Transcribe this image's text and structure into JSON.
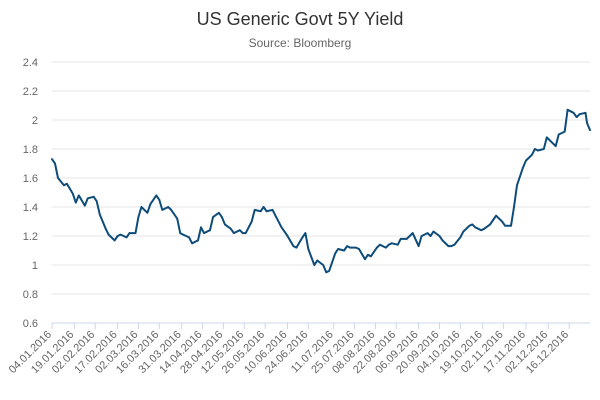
{
  "chart_data": {
    "type": "line",
    "title": "US Generic Govt 5Y Yield",
    "subtitle": "Source: Bloomberg",
    "xlabel": "",
    "ylabel": "",
    "ylim": [
      0.6,
      2.4
    ],
    "yticks": [
      0.6,
      0.8,
      1,
      1.2,
      1.4,
      1.6,
      1.8,
      2,
      2.2,
      2.4
    ],
    "xlim": [
      "04.01.2016",
      "30.12.2016"
    ],
    "xtick_labels": [
      "04.01.2016",
      "19.01.2016",
      "02.02.2016",
      "17.02.2016",
      "02.03.2016",
      "16.03.2016",
      "31.03.2016",
      "14.04.2016",
      "28.04.2016",
      "12.05.2016",
      "26.05.2016",
      "10.06.2016",
      "24.06.2016",
      "11.07.2016",
      "25.07.2016",
      "08.08.2016",
      "22.08.2016",
      "06.09.2016",
      "20.09.2016",
      "04.10.2016",
      "19.10.2016",
      "02.11.2016",
      "17.11.2016",
      "02.12.2016",
      "16.12.2016"
    ],
    "grid": true,
    "legend": "none",
    "color": "#0e4c7a",
    "series": [
      {
        "name": "",
        "points": [
          [
            "04.01.2016",
            1.73
          ],
          [
            "06.01.2016",
            1.7
          ],
          [
            "08.01.2016",
            1.6
          ],
          [
            "12.01.2016",
            1.55
          ],
          [
            "14.01.2016",
            1.56
          ],
          [
            "18.01.2016",
            1.49
          ],
          [
            "20.01.2016",
            1.43
          ],
          [
            "22.01.2016",
            1.48
          ],
          [
            "26.01.2016",
            1.41
          ],
          [
            "28.01.2016",
            1.46
          ],
          [
            "01.02.2016",
            1.47
          ],
          [
            "03.02.2016",
            1.44
          ],
          [
            "05.02.2016",
            1.35
          ],
          [
            "09.02.2016",
            1.25
          ],
          [
            "11.02.2016",
            1.21
          ],
          [
            "15.02.2016",
            1.17
          ],
          [
            "17.02.2016",
            1.2
          ],
          [
            "19.02.2016",
            1.21
          ],
          [
            "23.02.2016",
            1.19
          ],
          [
            "25.02.2016",
            1.22
          ],
          [
            "29.02.2016",
            1.22
          ],
          [
            "02.03.2016",
            1.33
          ],
          [
            "04.03.2016",
            1.4
          ],
          [
            "08.03.2016",
            1.36
          ],
          [
            "10.03.2016",
            1.42
          ],
          [
            "14.03.2016",
            1.48
          ],
          [
            "16.03.2016",
            1.45
          ],
          [
            "18.03.2016",
            1.38
          ],
          [
            "22.03.2016",
            1.4
          ],
          [
            "24.03.2016",
            1.38
          ],
          [
            "28.03.2016",
            1.32
          ],
          [
            "30.03.2016",
            1.22
          ],
          [
            "01.04.2016",
            1.21
          ],
          [
            "05.04.2016",
            1.19
          ],
          [
            "07.04.2016",
            1.15
          ],
          [
            "11.04.2016",
            1.17
          ],
          [
            "13.04.2016",
            1.26
          ],
          [
            "15.04.2016",
            1.22
          ],
          [
            "19.04.2016",
            1.24
          ],
          [
            "21.04.2016",
            1.33
          ],
          [
            "25.04.2016",
            1.36
          ],
          [
            "27.04.2016",
            1.33
          ],
          [
            "29.04.2016",
            1.28
          ],
          [
            "03.05.2016",
            1.25
          ],
          [
            "05.05.2016",
            1.22
          ],
          [
            "09.05.2016",
            1.24
          ],
          [
            "11.05.2016",
            1.22
          ],
          [
            "13.05.2016",
            1.22
          ],
          [
            "17.05.2016",
            1.3
          ],
          [
            "19.05.2016",
            1.38
          ],
          [
            "23.05.2016",
            1.37
          ],
          [
            "25.05.2016",
            1.4
          ],
          [
            "27.05.2016",
            1.37
          ],
          [
            "31.05.2016",
            1.38
          ],
          [
            "02.06.2016",
            1.34
          ],
          [
            "06.06.2016",
            1.26
          ],
          [
            "08.06.2016",
            1.23
          ],
          [
            "10.06.2016",
            1.2
          ],
          [
            "14.06.2016",
            1.13
          ],
          [
            "16.06.2016",
            1.12
          ],
          [
            "20.06.2016",
            1.19
          ],
          [
            "22.06.2016",
            1.22
          ],
          [
            "24.06.2016",
            1.11
          ],
          [
            "28.06.2016",
            1.0
          ],
          [
            "30.06.2016",
            1.03
          ],
          [
            "04.07.2016",
            1.0
          ],
          [
            "06.07.2016",
            0.95
          ],
          [
            "08.07.2016",
            0.96
          ],
          [
            "12.07.2016",
            1.08
          ],
          [
            "14.07.2016",
            1.11
          ],
          [
            "18.07.2016",
            1.1
          ],
          [
            "20.07.2016",
            1.13
          ],
          [
            "22.07.2016",
            1.12
          ],
          [
            "26.07.2016",
            1.12
          ],
          [
            "28.07.2016",
            1.11
          ],
          [
            "01.08.2016",
            1.04
          ],
          [
            "03.08.2016",
            1.07
          ],
          [
            "05.08.2016",
            1.06
          ],
          [
            "09.08.2016",
            1.12
          ],
          [
            "11.08.2016",
            1.14
          ],
          [
            "15.08.2016",
            1.12
          ],
          [
            "17.08.2016",
            1.14
          ],
          [
            "19.08.2016",
            1.15
          ],
          [
            "23.08.2016",
            1.14
          ],
          [
            "25.08.2016",
            1.18
          ],
          [
            "29.08.2016",
            1.18
          ],
          [
            "31.08.2016",
            1.2
          ],
          [
            "02.09.2016",
            1.22
          ],
          [
            "06.09.2016",
            1.13
          ],
          [
            "08.09.2016",
            1.2
          ],
          [
            "12.09.2016",
            1.22
          ],
          [
            "14.09.2016",
            1.2
          ],
          [
            "16.09.2016",
            1.23
          ],
          [
            "20.09.2016",
            1.2
          ],
          [
            "22.09.2016",
            1.17
          ],
          [
            "26.09.2016",
            1.13
          ],
          [
            "28.09.2016",
            1.13
          ],
          [
            "30.09.2016",
            1.14
          ],
          [
            "04.10.2016",
            1.19
          ],
          [
            "06.10.2016",
            1.23
          ],
          [
            "10.10.2016",
            1.27
          ],
          [
            "12.10.2016",
            1.28
          ],
          [
            "14.10.2016",
            1.26
          ],
          [
            "18.10.2016",
            1.24
          ],
          [
            "20.10.2016",
            1.25
          ],
          [
            "24.10.2016",
            1.28
          ],
          [
            "26.10.2016",
            1.31
          ],
          [
            "28.10.2016",
            1.34
          ],
          [
            "01.11.2016",
            1.3
          ],
          [
            "03.11.2016",
            1.27
          ],
          [
            "07.11.2016",
            1.27
          ],
          [
            "09.11.2016",
            1.4
          ],
          [
            "11.11.2016",
            1.55
          ],
          [
            "15.11.2016",
            1.67
          ],
          [
            "17.11.2016",
            1.72
          ],
          [
            "21.11.2016",
            1.76
          ],
          [
            "23.11.2016",
            1.8
          ],
          [
            "25.11.2016",
            1.79
          ],
          [
            "29.11.2016",
            1.8
          ],
          [
            "01.12.2016",
            1.88
          ],
          [
            "05.12.2016",
            1.84
          ],
          [
            "07.12.2016",
            1.82
          ],
          [
            "09.12.2016",
            1.9
          ],
          [
            "13.12.2016",
            1.92
          ],
          [
            "15.12.2016",
            2.07
          ],
          [
            "19.12.2016",
            2.05
          ],
          [
            "21.12.2016",
            2.02
          ],
          [
            "23.12.2016",
            2.04
          ],
          [
            "27.12.2016",
            2.05
          ],
          [
            "28.12.2016",
            1.98
          ],
          [
            "30.12.2016",
            1.93
          ]
        ]
      }
    ]
  }
}
